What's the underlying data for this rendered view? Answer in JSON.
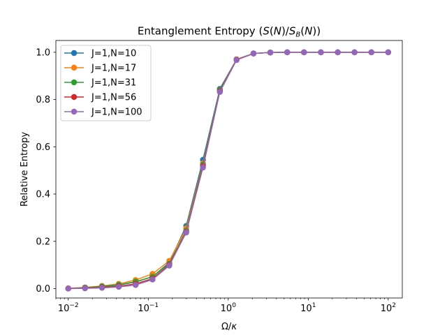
{
  "chart_data": {
    "type": "line",
    "title": "Entanglement Entropy (S(N)/S_B(N))",
    "title_parts": {
      "prefix": "Entanglement Entropy (",
      "s": "S",
      "n1": "N",
      "slash": ")/",
      "sb": "S",
      "sb_sub": "B",
      "n2": "N",
      "close": "))"
    },
    "xlabel": "Ω/κ",
    "xlabel_parts": {
      "omega": "Ω/",
      "kappa": "κ"
    },
    "ylabel": "Relative Entropy",
    "xscale": "log",
    "xlim": [
      0.007,
      150
    ],
    "ylim": [
      -0.04,
      1.05
    ],
    "xticks": [
      {
        "value": 0.01,
        "base": "10",
        "exp": "−2"
      },
      {
        "value": 0.1,
        "base": "10",
        "exp": "−1"
      },
      {
        "value": 1,
        "base": "10",
        "exp": "0"
      },
      {
        "value": 10,
        "base": "10",
        "exp": "1"
      },
      {
        "value": 100,
        "base": "10",
        "exp": "2"
      }
    ],
    "yticks": [
      {
        "value": 0.0,
        "label": "0.0"
      },
      {
        "value": 0.2,
        "label": "0.2"
      },
      {
        "value": 0.4,
        "label": "0.4"
      },
      {
        "value": 0.6,
        "label": "0.6"
      },
      {
        "value": 0.8,
        "label": "0.8"
      },
      {
        "value": 1.0,
        "label": "1.0"
      }
    ],
    "grid": false,
    "legend_position": "top-left",
    "x": [
      0.01,
      0.0162,
      0.0264,
      0.0428,
      0.0695,
      0.113,
      0.183,
      0.298,
      0.483,
      0.785,
      1.27,
      2.07,
      3.36,
      5.46,
      8.86,
      14.4,
      23.4,
      37.9,
      61.6,
      100
    ],
    "series": [
      {
        "name": "J=1,N=10",
        "color": "#1f77b4",
        "values": [
          0.0,
          0.003,
          0.008,
          0.015,
          0.028,
          0.05,
          0.11,
          0.265,
          0.545,
          0.845,
          0.97,
          0.995,
          0.999,
          1.0,
          1.0,
          1.0,
          1.0,
          1.0,
          1.0,
          1.0
        ]
      },
      {
        "name": "J=1,N=17",
        "color": "#ff7f0e",
        "values": [
          0.001,
          0.005,
          0.011,
          0.02,
          0.036,
          0.062,
          0.117,
          0.255,
          0.53,
          0.84,
          0.97,
          0.995,
          0.999,
          1.0,
          1.0,
          1.0,
          1.0,
          1.0,
          1.0,
          1.0
        ]
      },
      {
        "name": "J=1,N=31",
        "color": "#2ca02c",
        "values": [
          0.0,
          0.004,
          0.009,
          0.016,
          0.029,
          0.05,
          0.105,
          0.245,
          0.525,
          0.84,
          0.968,
          0.995,
          0.999,
          1.0,
          1.0,
          1.0,
          1.0,
          1.0,
          1.0,
          1.0
        ]
      },
      {
        "name": "J=1,N=56",
        "color": "#d62728",
        "values": [
          0.0,
          0.002,
          0.005,
          0.01,
          0.02,
          0.042,
          0.1,
          0.24,
          0.518,
          0.835,
          0.968,
          0.995,
          0.999,
          1.0,
          1.0,
          1.0,
          1.0,
          1.0,
          1.0,
          1.0
        ]
      },
      {
        "name": "J=1,N=100",
        "color": "#9467bd",
        "values": [
          0.0,
          0.001,
          0.003,
          0.007,
          0.015,
          0.038,
          0.097,
          0.237,
          0.512,
          0.832,
          0.967,
          0.995,
          0.999,
          1.0,
          1.0,
          1.0,
          1.0,
          1.0,
          1.0,
          1.0
        ]
      }
    ]
  }
}
